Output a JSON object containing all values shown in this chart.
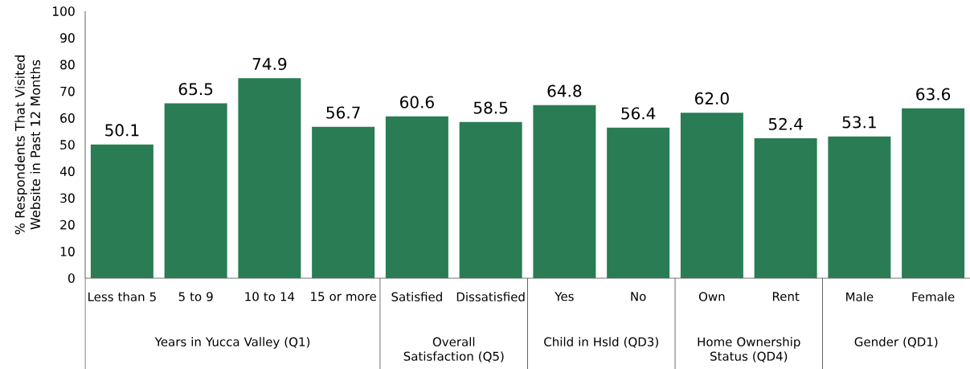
{
  "chart_data": {
    "type": "bar",
    "ylabel": "% Respondents That Visited Website in Past 12 Months",
    "categories": [
      "Less than 5",
      "5 to 9",
      "10 to 14",
      "15 or more",
      "Satisfied",
      "Dissatisfied",
      "Yes",
      "No",
      "Own",
      "Rent",
      "Male",
      "Female"
    ],
    "values": [
      50.1,
      65.5,
      74.9,
      56.7,
      60.6,
      58.5,
      64.8,
      56.4,
      62.0,
      52.4,
      53.1,
      63.6
    ],
    "value_labels": [
      "50.1",
      "65.5",
      "74.9",
      "56.7",
      "60.6",
      "58.5",
      "64.8",
      "56.4",
      "62.0",
      "52.4",
      "53.1",
      "63.6"
    ],
    "color": "#297c54",
    "ylim": [
      0,
      100
    ],
    "yticks": [
      0,
      10,
      20,
      30,
      40,
      50,
      60,
      70,
      80,
      90,
      100
    ],
    "annotations": [
      "Years in Yucca Valley (Q1)",
      "Overall Satisfaction (Q5)",
      "Child in Hsld (QD3)",
      "Home Ownership Status (QD4)",
      "Gender (QD1)"
    ]
  }
}
